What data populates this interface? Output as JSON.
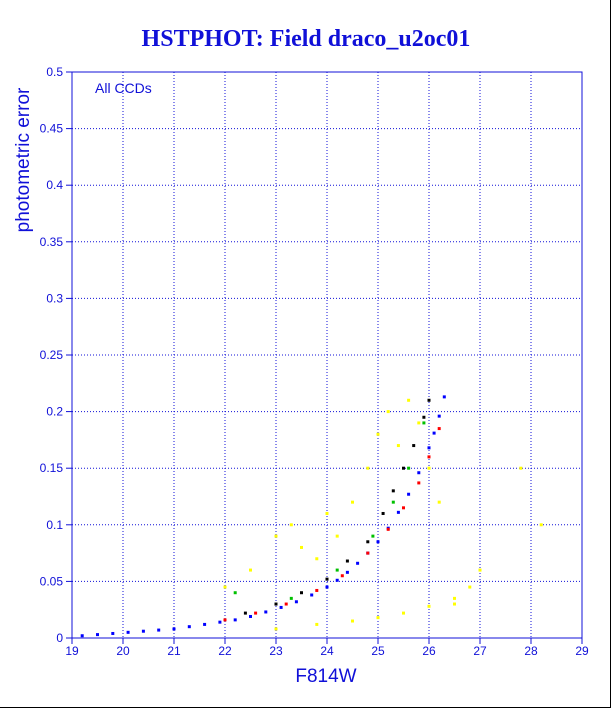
{
  "chart_data": {
    "type": "scatter",
    "title": "HSTPHOT: Field draco_u2oc01",
    "xlabel": "F814W",
    "ylabel": "photometric error",
    "annotation": "All CCDs",
    "xlim": [
      19,
      29
    ],
    "ylim": [
      0,
      0.5
    ],
    "x_ticks": [
      "19",
      "20",
      "21",
      "22",
      "23",
      "24",
      "25",
      "26",
      "27",
      "28",
      "29"
    ],
    "y_ticks": [
      "0",
      "0.05",
      "0.1",
      "0.15",
      "0.2",
      "0.25",
      "0.3",
      "0.35",
      "0.4",
      "0.45",
      "0.5"
    ],
    "grid": true,
    "series": [
      {
        "color": "#0000ff",
        "x": [
          19.2,
          19.5,
          19.8,
          20.1,
          20.4,
          20.7,
          21.0,
          21.3,
          21.6,
          21.9,
          22.2,
          22.5,
          22.8,
          23.1,
          23.4,
          23.7,
          24.0,
          24.2,
          24.4,
          24.6,
          24.8,
          25.0,
          25.2,
          25.4,
          25.6,
          25.8,
          26.0,
          26.1,
          26.2,
          26.3
        ],
        "y": [
          0.002,
          0.003,
          0.004,
          0.005,
          0.006,
          0.007,
          0.008,
          0.01,
          0.012,
          0.014,
          0.016,
          0.019,
          0.023,
          0.027,
          0.032,
          0.038,
          0.045,
          0.051,
          0.058,
          0.066,
          0.075,
          0.085,
          0.097,
          0.111,
          0.127,
          0.146,
          0.168,
          0.181,
          0.196,
          0.213
        ]
      },
      {
        "color": "#ff0000",
        "x": [
          22.0,
          22.6,
          23.2,
          23.8,
          24.3,
          24.8,
          25.2,
          25.5,
          25.8,
          26.0,
          26.2
        ],
        "y": [
          0.016,
          0.022,
          0.03,
          0.042,
          0.055,
          0.075,
          0.096,
          0.115,
          0.137,
          0.16,
          0.185
        ]
      },
      {
        "color": "#000000",
        "x": [
          22.4,
          23.0,
          23.5,
          24.0,
          24.4,
          24.8,
          25.1,
          25.3,
          25.5,
          25.7,
          25.9,
          26.0
        ],
        "y": [
          0.022,
          0.03,
          0.04,
          0.052,
          0.068,
          0.085,
          0.11,
          0.13,
          0.15,
          0.17,
          0.195,
          0.21
        ]
      },
      {
        "color": "#00c000",
        "x": [
          22.2,
          23.3,
          24.2,
          24.9,
          25.3,
          25.6,
          25.9
        ],
        "y": [
          0.04,
          0.035,
          0.06,
          0.09,
          0.12,
          0.15,
          0.19
        ]
      },
      {
        "color": "#ffff00",
        "x": [
          22.0,
          22.5,
          23.0,
          23.3,
          23.5,
          23.8,
          24.0,
          24.2,
          24.5,
          24.8,
          25.0,
          25.2,
          25.4,
          25.6,
          25.8,
          26.0,
          26.2,
          26.5,
          26.8,
          27.0,
          23.0,
          23.8,
          24.5,
          25.0,
          25.5,
          26.0,
          26.5,
          27.8,
          28.2
        ],
        "y": [
          0.045,
          0.06,
          0.09,
          0.1,
          0.08,
          0.07,
          0.11,
          0.09,
          0.12,
          0.15,
          0.18,
          0.2,
          0.17,
          0.21,
          0.19,
          0.15,
          0.12,
          0.03,
          0.045,
          0.06,
          0.008,
          0.012,
          0.015,
          0.018,
          0.022,
          0.028,
          0.035,
          0.15,
          0.1
        ]
      }
    ]
  }
}
